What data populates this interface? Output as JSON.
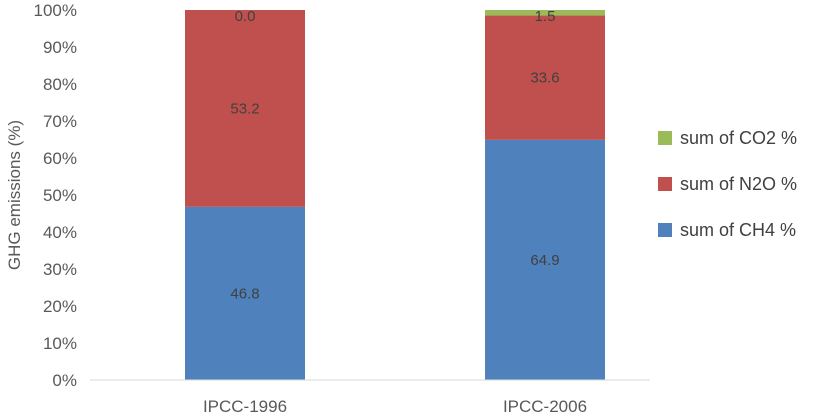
{
  "chart_data": {
    "type": "bar",
    "stacked": true,
    "normalized": true,
    "categories": [
      "IPCC-1996",
      "IPCC-2006"
    ],
    "ylabel": "GHG emissions (%)",
    "ylim": [
      0,
      100
    ],
    "yticks": [
      "0%",
      "10%",
      "20%",
      "30%",
      "40%",
      "50%",
      "60%",
      "70%",
      "80%",
      "90%",
      "100%"
    ],
    "grid": false,
    "legend_position": "right",
    "series": [
      {
        "name": "sum of CH4 %",
        "color": "#4f81bd",
        "values": [
          46.8,
          64.9
        ],
        "labels": [
          "46.8",
          "64.9"
        ]
      },
      {
        "name": "sum of N2O %",
        "color": "#c0504d",
        "values": [
          53.2,
          33.6
        ],
        "labels": [
          "53.2",
          "33.6"
        ]
      },
      {
        "name": "sum of CO2 %",
        "color": "#9bbb59",
        "values": [
          0.0,
          1.5
        ],
        "labels": [
          "0.0",
          "1.5"
        ]
      }
    ],
    "legend_order": [
      "sum of CO2 %",
      "sum of N2O %",
      "sum of CH4 %"
    ]
  }
}
